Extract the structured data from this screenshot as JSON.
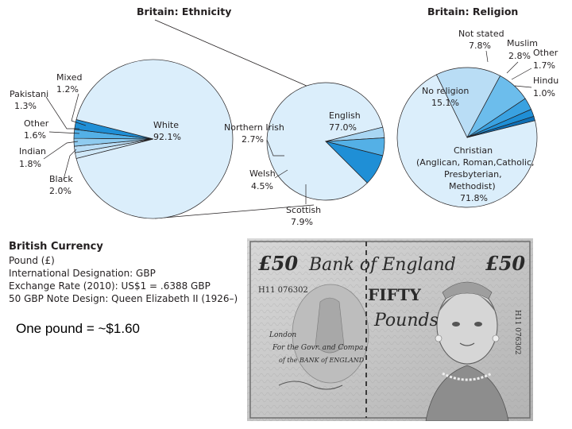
{
  "chart_data": [
    {
      "type": "pie",
      "title": "Britain: Ethnicity",
      "slices": [
        {
          "label": "White",
          "value": 92.1,
          "color": "#dbeefb"
        },
        {
          "label": "Mixed",
          "value": 1.2,
          "color": "#cfe8f8"
        },
        {
          "label": "Pakistani",
          "value": 1.3,
          "color": "#b9ddf5"
        },
        {
          "label": "Other",
          "value": 1.6,
          "color": "#8fcbef"
        },
        {
          "label": "Indian",
          "value": 1.8,
          "color": "#54b0e6"
        },
        {
          "label": "Black",
          "value": 2.0,
          "color": "#1f8fd6"
        }
      ],
      "exploded_slice": "White"
    },
    {
      "type": "pie",
      "title": "",
      "parent_slice": "White",
      "slices": [
        {
          "label": "English",
          "value": 77.0,
          "color": "#dbeefb"
        },
        {
          "label": "Northern Irish",
          "value": 2.7,
          "color": "#a9d6f3"
        },
        {
          "label": "Welsh",
          "value": 4.5,
          "color": "#54b0e6"
        },
        {
          "label": "Scottish",
          "value": 7.9,
          "color": "#1f8fd6"
        }
      ]
    },
    {
      "type": "pie",
      "title": "Britain: Religion",
      "slices": [
        {
          "label": "Christian (Anglican, Roman, Catholic, Presbyterian, Methodist)",
          "value": 71.8,
          "color": "#dbeefb"
        },
        {
          "label": "No religion",
          "value": 15.1,
          "color": "#b9ddf5"
        },
        {
          "label": "Not stated",
          "value": 7.8,
          "color": "#6cbdec"
        },
        {
          "label": "Muslim",
          "value": 2.8,
          "color": "#3aa2e1"
        },
        {
          "label": "Other",
          "value": 1.7,
          "color": "#1f8fd6"
        },
        {
          "label": "Hindu",
          "value": 1.0,
          "color": "#0f6fb4"
        }
      ]
    }
  ],
  "labels": {
    "ethnicity_title": "Britain: Ethnicity",
    "religion_title": "Britain: Religion",
    "white": "White",
    "white_pct": "92.1%",
    "mixed": "Mixed",
    "mixed_pct": "1.2%",
    "pakistani": "Pakistani",
    "pakistani_pct": "1.3%",
    "other": "Other",
    "other_pct": "1.6%",
    "indian": "Indian",
    "indian_pct": "1.8%",
    "black": "Black",
    "black_pct": "2.0%",
    "english": "English",
    "english_pct": "77.0%",
    "northern_irish": "Northern Irish",
    "northern_irish_pct": "2.7%",
    "welsh": "Welsh",
    "welsh_pct": "4.5%",
    "scottish": "Scottish",
    "scottish_pct": "7.9%",
    "not_stated": "Not stated",
    "not_stated_pct": "7.8%",
    "muslim": "Muslim",
    "muslim_pct": "2.8%",
    "rel_other": "Other",
    "rel_other_pct": "1.7%",
    "hindu": "Hindu",
    "hindu_pct": "1.0%",
    "no_religion": "No religion",
    "no_religion_pct": "15.1%",
    "christian_1": "Christian",
    "christian_2": "(Anglican, Roman,Catholic,",
    "christian_3": "Presbyterian,",
    "christian_4": "Methodist)",
    "christian_pct": "71.8%"
  },
  "currency": {
    "title": "British Currency",
    "lines": [
      "Pound (£)",
      "International Designation: GBP",
      "Exchange Rate (2010): US$1 = .6388 GBP",
      "50 GBP Note Design: Queen Elizabeth II (1926–)"
    ],
    "conversion": "One pound = ~$1.60"
  },
  "banknote": {
    "denomination": "£50",
    "bank": "Bank of England",
    "word": "FIFTY",
    "pounds": "Pounds",
    "serial": "H11 076302",
    "promise_1": "London",
    "promise_2": "For the Govr. and Compa.",
    "promise_3": "of the BANK of ENGLAND"
  }
}
